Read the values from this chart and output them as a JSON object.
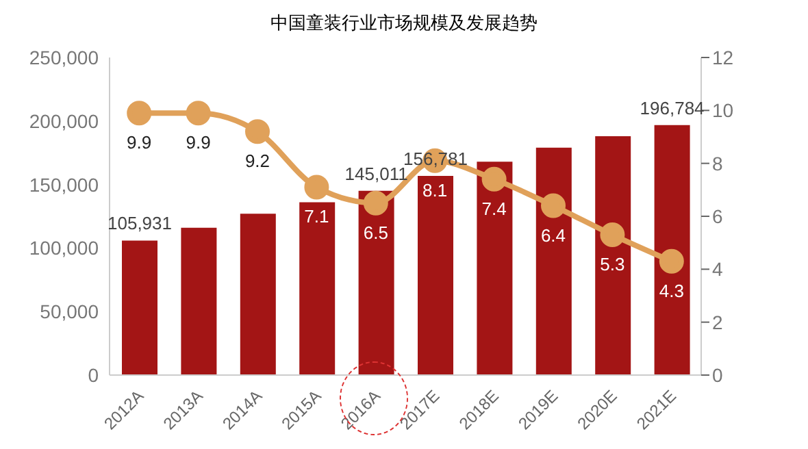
{
  "chart_data": {
    "type": "bar",
    "title": "中国童装行业市场规模及发展趋势",
    "categories": [
      "2012A",
      "2013A",
      "2014A",
      "2015A",
      "2016A",
      "2017E",
      "2018E",
      "2019E",
      "2020E",
      "2021E"
    ],
    "series": [
      {
        "color": "#a31515",
        "values": [
          105931,
          116000,
          127000,
          136000,
          145011,
          156781,
          168000,
          179000,
          188000,
          196784
        ],
        "value_labels": [
          "105,931",
          null,
          null,
          null,
          "145,011",
          "156,781",
          null,
          null,
          null,
          "196,784"
        ]
      },
      {
        "type": "line",
        "axis": "y2",
        "color": "#e0a15a",
        "values": [
          9.9,
          9.9,
          9.2,
          7.1,
          6.5,
          8.1,
          7.4,
          6.4,
          5.3,
          4.3
        ],
        "value_labels": [
          "9.9",
          "9.9",
          "9.2",
          "7.1",
          "6.5",
          "8.1",
          "7.4",
          "6.4",
          "5.3",
          "4.3"
        ]
      }
    ],
    "ylim": [
      0,
      250000
    ],
    "yticks": [
      0,
      {
        "value": 50000,
        "label": "50,000"
      },
      {
        "value": 100000,
        "label": "100,000"
      },
      {
        "value": 150000,
        "label": "150,000"
      },
      {
        "value": 200000,
        "label": "200,000"
      },
      {
        "value": 250000,
        "label": "250,000"
      }
    ],
    "y2lim": [
      0,
      12
    ],
    "y2ticks": [
      0,
      2,
      4,
      6,
      8,
      10,
      12
    ],
    "marker": "circle"
  }
}
